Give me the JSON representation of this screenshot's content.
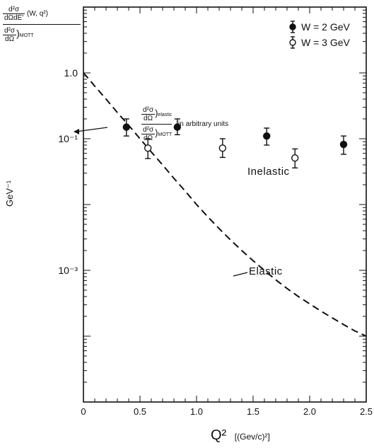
{
  "chart_data": {
    "type": "scatter",
    "y_label_top": {
      "num_main": "d²σ",
      "den_main": "dΩdE'",
      "args": "(W, q²)",
      "num2": "d²σ",
      "den2": "dΩ",
      "den2_sub": "MOTT"
    },
    "y_side_label": "GeV⁻¹",
    "xlabel": "Q²",
    "xunit": "[(Gev/c)²]",
    "xlim": [
      0,
      2.5
    ],
    "ylim_log10": [
      -5,
      1
    ],
    "x_ticks": [
      {
        "value": 0,
        "label": "0"
      },
      {
        "value": 0.5,
        "label": "0.5"
      },
      {
        "value": 1.0,
        "label": "1.0"
      },
      {
        "value": 1.5,
        "label": "1.5"
      },
      {
        "value": 2.0,
        "label": "2.0"
      },
      {
        "value": 2.5,
        "label": "2.5"
      }
    ],
    "y_ticks": [
      {
        "value": 1.0,
        "label": "1.0"
      },
      {
        "value": 0.1,
        "label": "10⁻¹"
      },
      {
        "value": 0.001,
        "label": "10⁻³"
      }
    ],
    "series": [
      {
        "name": "W = 2 GeV",
        "marker": "filled-circle",
        "x": [
          0.38,
          0.83,
          1.62,
          2.3
        ],
        "y": [
          0.15,
          0.15,
          0.11,
          0.082
        ],
        "err_lo": [
          0.11,
          0.115,
          0.08,
          0.058
        ],
        "err_hi": [
          0.2,
          0.2,
          0.145,
          0.11
        ]
      },
      {
        "name": "W = 3 GeV",
        "marker": "open-circle",
        "x": [
          0.57,
          1.23,
          1.87
        ],
        "y": [
          0.072,
          0.072,
          0.051
        ],
        "err_lo": [
          0.05,
          0.052,
          0.036
        ],
        "err_hi": [
          0.1,
          0.1,
          0.07
        ]
      }
    ],
    "elastic_curve": {
      "style": "dashed",
      "x": [
        0.0,
        0.05,
        0.1,
        0.2,
        0.3,
        0.4,
        0.5,
        0.6,
        0.7,
        0.8,
        0.9,
        1.0,
        1.1,
        1.2,
        1.3,
        1.4,
        1.5,
        1.6,
        1.7,
        1.8,
        1.9,
        2.0,
        2.1,
        2.2,
        2.3,
        2.4,
        2.5
      ],
      "y": [
        1.0,
        0.8,
        0.63,
        0.4,
        0.25,
        0.16,
        0.1,
        0.063,
        0.04,
        0.025,
        0.016,
        0.01,
        0.0065,
        0.0043,
        0.0029,
        0.002,
        0.0014,
        0.001,
        0.00072,
        0.00053,
        0.0004,
        0.00031,
        0.00024,
        0.00019,
        0.00015,
        0.00012,
        0.0001
      ]
    },
    "annotations": {
      "elastic_ratio_num": "d²σ",
      "elastic_ratio_num_den": "dΩ",
      "elastic_ratio_num_sub": "elastic",
      "elastic_ratio_den": "d²σ",
      "elastic_ratio_den_den": "dΩ",
      "elastic_ratio_den_sub": "MOTT",
      "arbitrary": "in arbitrary units",
      "inelastic": "Inelastic",
      "elastic": "Elastic"
    },
    "legend_position": "top-right",
    "grid": false
  }
}
